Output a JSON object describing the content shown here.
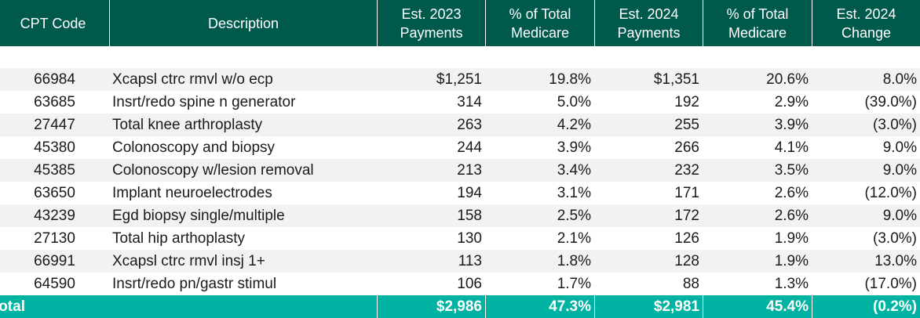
{
  "headers": [
    "CPT Code",
    "Description",
    "Est. 2023 Payments",
    "% of Total Medicare",
    "Est. 2024 Payments",
    "% of Total Medicare",
    "Est. 2024 Change"
  ],
  "rows": [
    [
      "66984",
      "Xcapsl ctrc rmvl w/o ecp",
      "$1,251",
      "19.8%",
      "$1,351",
      "20.6%",
      "8.0%"
    ],
    [
      "63685",
      "Insrt/redo spine n generator",
      "314",
      "5.0%",
      "192",
      "2.9%",
      "(39.0%)"
    ],
    [
      "27447",
      "Total knee arthroplasty",
      "263",
      "4.2%",
      "255",
      "3.9%",
      "(3.0%)"
    ],
    [
      "45380",
      "Colonoscopy and biopsy",
      "244",
      "3.9%",
      "266",
      "4.1%",
      "9.0%"
    ],
    [
      "45385",
      "Colonoscopy w/lesion removal",
      "213",
      "3.4%",
      "232",
      "3.5%",
      "9.0%"
    ],
    [
      "63650",
      "Implant neuroelectrodes",
      "194",
      "3.1%",
      "171",
      "2.6%",
      "(12.0%)"
    ],
    [
      "43239",
      "Egd biopsy single/multiple",
      "158",
      "2.5%",
      "172",
      "2.6%",
      "9.0%"
    ],
    [
      "27130",
      "Total hip arthoplasty",
      "130",
      "2.1%",
      "126",
      "1.9%",
      "(3.0%)"
    ],
    [
      "66991",
      "Xcapsl ctrc rmvl insj 1+",
      "113",
      "1.8%",
      "128",
      "1.9%",
      "13.0%"
    ],
    [
      "64590",
      "Insrt/redo pn/gastr stimul",
      "106",
      "1.7%",
      "88",
      "1.3%",
      "(17.0%)"
    ]
  ],
  "total": {
    "label": "Total",
    "values": [
      "$2,986",
      "47.3%",
      "$2,981",
      "45.4%",
      "(0.2%)"
    ]
  },
  "colors": {
    "header_bg": "#005a4c",
    "total_bg": "#00b2a1",
    "stripe_bg": "#f2f2f2"
  }
}
